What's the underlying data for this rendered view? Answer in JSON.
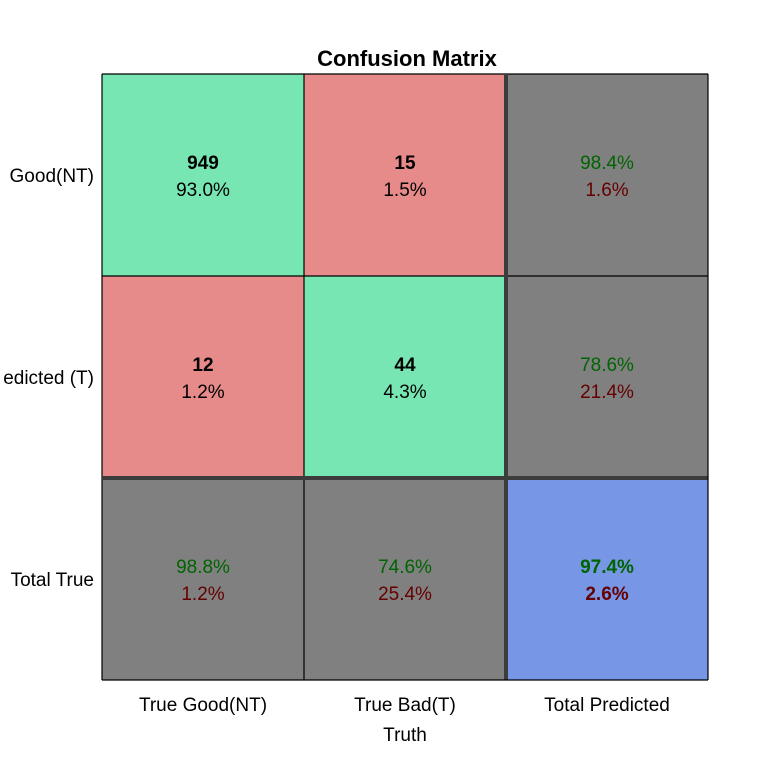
{
  "chart_data": {
    "type": "heatmap",
    "title": "Confusion Matrix",
    "xlabel": "Truth",
    "ylabel": "",
    "x_categories": [
      "True Good(NT)",
      "True Bad(T)",
      "Total Predicted"
    ],
    "y_categories": [
      "Good(NT)",
      "edicted (T)",
      "Total True"
    ],
    "matrix": [
      [
        {
          "count": "949",
          "percent": "93.0%"
        },
        {
          "count": "15",
          "percent": "1.5%"
        }
      ],
      [
        {
          "count": "12",
          "percent": "1.2%"
        },
        {
          "count": "44",
          "percent": "4.3%"
        }
      ]
    ],
    "row_summary": [
      {
        "correct": "98.4%",
        "incorrect": "1.6%"
      },
      {
        "correct": "78.6%",
        "incorrect": "21.4%"
      }
    ],
    "column_summary": [
      {
        "correct": "98.8%",
        "incorrect": "1.2%"
      },
      {
        "correct": "74.6%",
        "incorrect": "25.4%"
      }
    ],
    "overall": {
      "correct": "97.4%",
      "incorrect": "2.6%"
    },
    "colors": {
      "correct_cell": "#77e6b2",
      "incorrect_cell": "#e68a8a",
      "summary_cell": "#808080",
      "overall_cell": "#7896e6",
      "correct_text": "#006400",
      "incorrect_text": "#640000",
      "grid_line": "#3c3c3c"
    }
  }
}
